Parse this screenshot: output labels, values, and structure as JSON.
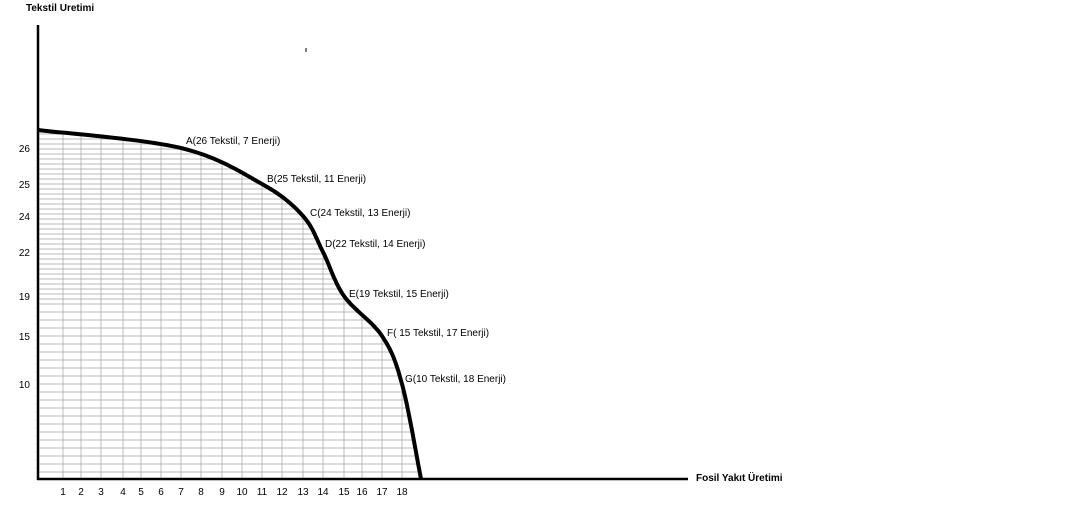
{
  "chart_data": {
    "type": "line",
    "ylabel": "Tekstil Uretimi",
    "xlabel": "Fosil Yakıt Üretimi",
    "x_ticks": [
      "1",
      "2",
      "3",
      "4",
      "5",
      "6",
      "7",
      "8",
      "9",
      "10",
      "11",
      "12",
      "13",
      "14",
      "15",
      "16",
      "17",
      "18"
    ],
    "y_ticks": [
      "26",
      "25",
      "24",
      "22",
      "19",
      "15",
      "10"
    ],
    "points": [
      {
        "label": "A(26 Tekstil, 7 Enerji)",
        "textil": 26,
        "energy": 7
      },
      {
        "label": "B(25 Tekstil, 11 Enerji)",
        "textil": 25,
        "energy": 11
      },
      {
        "label": "C(24 Tekstil, 13 Enerji)",
        "textil": 24,
        "energy": 13
      },
      {
        "label": "D(22 Tekstil, 14 Enerji)",
        "textil": 22,
        "energy": 14
      },
      {
        "label": "E(19 Tekstil, 15 Enerji)",
        "textil": 19,
        "energy": 15
      },
      {
        "label": "F( 15 Tekstil, 17 Enerji)",
        "textil": 15,
        "energy": 17
      },
      {
        "label": "G(10 Tekstil, 18 Enerji)",
        "textil": 10,
        "energy": 18
      }
    ],
    "curve": [
      {
        "energy": 0,
        "textil": 27.3
      },
      {
        "energy": 7,
        "textil": 26
      },
      {
        "energy": 11,
        "textil": 25
      },
      {
        "energy": 13,
        "textil": 24
      },
      {
        "energy": 14,
        "textil": 22
      },
      {
        "energy": 15,
        "textil": 19
      },
      {
        "energy": 17,
        "textil": 15
      },
      {
        "energy": 18,
        "textil": 10
      },
      {
        "energy": 19,
        "textil": 0
      }
    ],
    "grid": true
  }
}
